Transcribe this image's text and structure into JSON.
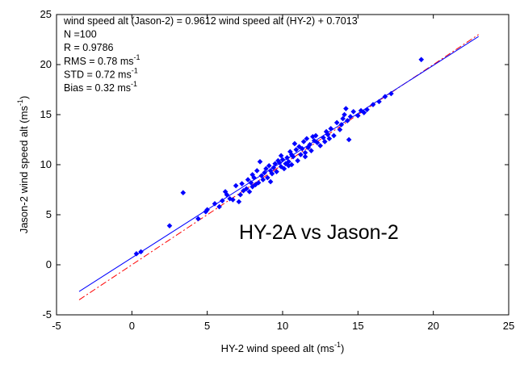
{
  "chart_data": {
    "type": "scatter",
    "xlabel": "HY-2 wind speed alt (ms",
    "xlabel_sup": "-1",
    "xlabel_end": ")",
    "ylabel": "Jason-2 wind speed alt (ms",
    "ylabel_sup": "-1",
    "ylabel_end": ")",
    "xlim": [
      -5,
      25
    ],
    "ylim": [
      -5,
      25
    ],
    "xticks": [
      "-5",
      "0",
      "5",
      "10",
      "15",
      "20",
      "25"
    ],
    "yticks": [
      "-5",
      "0",
      "5",
      "10",
      "15",
      "20",
      "25"
    ],
    "annotations": [
      {
        "text": "wind speed alt (Jason-2) = 0.9612 wind speed alt (HY-2) + 0.7013",
        "sup": "",
        "end": ""
      },
      {
        "text": "N =100",
        "sup": "",
        "end": ""
      },
      {
        "text": "R = 0.9786",
        "sup": "",
        "end": ""
      },
      {
        "text": "RMS = 0.78 ms",
        "sup": "-1",
        "end": ""
      },
      {
        "text": "STD = 0.72 ms",
        "sup": "-1",
        "end": ""
      },
      {
        "text": "Bias = 0.32 ms",
        "sup": "-1",
        "end": ""
      }
    ],
    "overlay_text": "HY-2A vs Jason-2",
    "fit_line": {
      "slope": 0.9612,
      "intercept": 0.7013,
      "x_range": [
        -3.5,
        23
      ],
      "color": "#0000ff",
      "style": "solid"
    },
    "identity_line": {
      "slope": 1,
      "intercept": 0,
      "x_range": [
        -3.5,
        23
      ],
      "color": "#ff0000",
      "style": "dash-dot"
    },
    "marker_color": "#0000ff",
    "points": [
      [
        0.3,
        1.1
      ],
      [
        0.6,
        1.3
      ],
      [
        2.5,
        3.9
      ],
      [
        3.4,
        7.2
      ],
      [
        4.4,
        4.6
      ],
      [
        4.9,
        5.3
      ],
      [
        5.0,
        5.5
      ],
      [
        5.5,
        6.1
      ],
      [
        5.8,
        5.8
      ],
      [
        6.0,
        6.4
      ],
      [
        6.2,
        7.3
      ],
      [
        6.5,
        6.6
      ],
      [
        6.7,
        6.5
      ],
      [
        6.9,
        7.9
      ],
      [
        7.1,
        6.3
      ],
      [
        7.2,
        7.0
      ],
      [
        7.4,
        7.4
      ],
      [
        7.6,
        7.6
      ],
      [
        7.7,
        8.5
      ],
      [
        7.8,
        7.3
      ],
      [
        7.9,
        8.2
      ],
      [
        8.0,
        7.8
      ],
      [
        8.1,
        8.7
      ],
      [
        8.2,
        8.0
      ],
      [
        8.3,
        9.4
      ],
      [
        8.4,
        8.2
      ],
      [
        8.5,
        10.3
      ],
      [
        8.6,
        8.9
      ],
      [
        8.7,
        8.5
      ],
      [
        8.8,
        9.2
      ],
      [
        8.9,
        9.6
      ],
      [
        9.0,
        8.7
      ],
      [
        9.1,
        9.9
      ],
      [
        9.2,
        9.4
      ],
      [
        9.3,
        9.1
      ],
      [
        9.4,
        9.7
      ],
      [
        9.5,
        10.1
      ],
      [
        9.6,
        9.3
      ],
      [
        9.7,
        10.4
      ],
      [
        9.8,
        10.2
      ],
      [
        9.9,
        9.8
      ],
      [
        10.0,
        10.5
      ],
      [
        10.1,
        9.6
      ],
      [
        10.2,
        10.1
      ],
      [
        10.3,
        10.7
      ],
      [
        10.4,
        10.3
      ],
      [
        10.5,
        11.3
      ],
      [
        10.6,
        10.0
      ],
      [
        10.7,
        10.8
      ],
      [
        10.8,
        12.1
      ],
      [
        10.9,
        11.5
      ],
      [
        11.0,
        10.4
      ],
      [
        11.1,
        11.8
      ],
      [
        11.2,
        11.0
      ],
      [
        11.3,
        11.6
      ],
      [
        11.4,
        12.3
      ],
      [
        11.5,
        11.2
      ],
      [
        11.6,
        12.6
      ],
      [
        11.7,
        11.7
      ],
      [
        11.8,
        12.0
      ],
      [
        11.9,
        11.4
      ],
      [
        12.0,
        12.8
      ],
      [
        12.1,
        12.4
      ],
      [
        12.3,
        12.2
      ],
      [
        12.5,
        11.9
      ],
      [
        12.7,
        12.7
      ],
      [
        12.9,
        13.3
      ],
      [
        13.0,
        13.0
      ],
      [
        13.2,
        13.6
      ],
      [
        13.4,
        12.9
      ],
      [
        13.6,
        14.2
      ],
      [
        13.8,
        13.5
      ],
      [
        13.9,
        14.0
      ],
      [
        14.0,
        14.6
      ],
      [
        14.1,
        15.0
      ],
      [
        14.2,
        15.6
      ],
      [
        14.3,
        14.4
      ],
      [
        14.4,
        12.5
      ],
      [
        14.5,
        14.8
      ],
      [
        14.7,
        15.3
      ],
      [
        15.0,
        14.9
      ],
      [
        15.2,
        15.4
      ],
      [
        15.4,
        15.2
      ],
      [
        15.6,
        15.5
      ],
      [
        16.0,
        16.0
      ],
      [
        16.4,
        16.3
      ],
      [
        16.8,
        16.8
      ],
      [
        17.2,
        17.1
      ],
      [
        19.2,
        20.5
      ],
      [
        9.2,
        8.3
      ],
      [
        8.0,
        9.0
      ],
      [
        10.6,
        11.0
      ],
      [
        9.9,
        10.9
      ],
      [
        12.2,
        12.9
      ],
      [
        13.1,
        12.6
      ],
      [
        11.5,
        10.8
      ],
      [
        7.3,
        8.1
      ],
      [
        6.3,
        7.0
      ],
      [
        10.4,
        9.9
      ],
      [
        12.8,
        12.3
      ]
    ]
  }
}
